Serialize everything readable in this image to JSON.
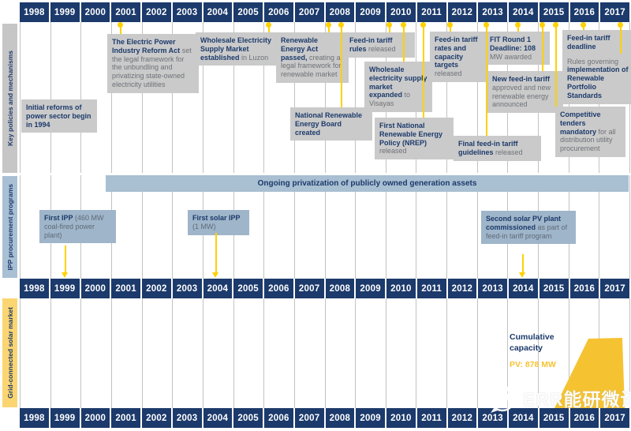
{
  "years": [
    "1998",
    "1999",
    "2000",
    "2001",
    "2002",
    "2003",
    "2004",
    "2005",
    "2006",
    "2007",
    "2008",
    "2009",
    "2010",
    "2011",
    "2012",
    "2013",
    "2014",
    "2015",
    "2016",
    "2017"
  ],
  "sidebar": {
    "policies": "Key policies and mechanisms",
    "ipp": "IPP procurement programs",
    "solar": "Grid-connected solar market"
  },
  "band": {
    "label": "Ongoing privatization of publicly owned generation assets"
  },
  "events": {
    "initial_reforms": {
      "bold": "Initial reforms of power sector begin in 1994",
      "rest": ""
    },
    "epira": {
      "bold": "The Electric Power Industry Reform Act",
      "rest": "set the legal framework for the unbundling and privatizing state-owned electricity utilities"
    },
    "wesm_luzon": {
      "bold": "Wholesale Electricity Supply Market established",
      "rest": "in Luzon"
    },
    "re_act": {
      "bold": "Renewable Energy Act passed,",
      "rest": "creating a legal framework for renewable market"
    },
    "fit_rules": {
      "bold": "Feed-in tariff rules",
      "rest": "released"
    },
    "nreb": {
      "bold": "National Renewable Energy Board created",
      "rest": ""
    },
    "wesm_visayas": {
      "bold": "Wholesale electricity supply market expanded",
      "rest": "to Visayas"
    },
    "nrep": {
      "bold": "First National Renewable Energy Policy (NREP)",
      "rest": "released"
    },
    "fit_rates": {
      "bold": "Feed-in tariff rates and capacity targets",
      "rest": "released"
    },
    "fit_round1": {
      "bold": "FIT Round 1 Deadline: 108",
      "rest": "MW awarded"
    },
    "new_fit": {
      "bold": "New feed-in tariff",
      "rest": "approved and new renewable energy announced"
    },
    "final_fit": {
      "bold": "Final feed-in tariff guidelines",
      "rest": "released"
    },
    "fit_deadline": {
      "bold": "Feed-in tariff deadline",
      "rules_pre": "Rules governing",
      "rules_bold": "implementation of Renewable Portfolio Standards"
    },
    "competitive": {
      "bold": "Competitive tenders mandatory",
      "rest": "for all distribution utility procurement"
    },
    "first_ipp": {
      "bold": "First IPP",
      "rest": "(460 MW coal-fired power plant)"
    },
    "first_solar": {
      "bold": "First solar IPP",
      "rest": "(1 MW)"
    },
    "second_solar": {
      "bold": "Second solar PV plant commissioned",
      "rest": "as part of feed-in tariff program"
    }
  },
  "solar_market": {
    "cumulative_label": "Cumulative capacity",
    "pv_label": "PV: 878 MW"
  },
  "watermark": {
    "text": "ERR能研微讯"
  },
  "colors": {
    "navy": "#1c3a6b",
    "box_gray": "#cacaca",
    "text_muted": "#6e7277",
    "blue_box": "#9fb5c9",
    "band_blue": "#a9bfd2",
    "blue_muted": "#5e6b79",
    "yellow": "#ffd100",
    "poly_yellow": "#f5c332",
    "sidebar_gray": "#c6c6c6",
    "sidebar_blue": "#a9c0d4",
    "sidebar_yellow": "#fad571",
    "gridline": "#c2c2c2"
  }
}
